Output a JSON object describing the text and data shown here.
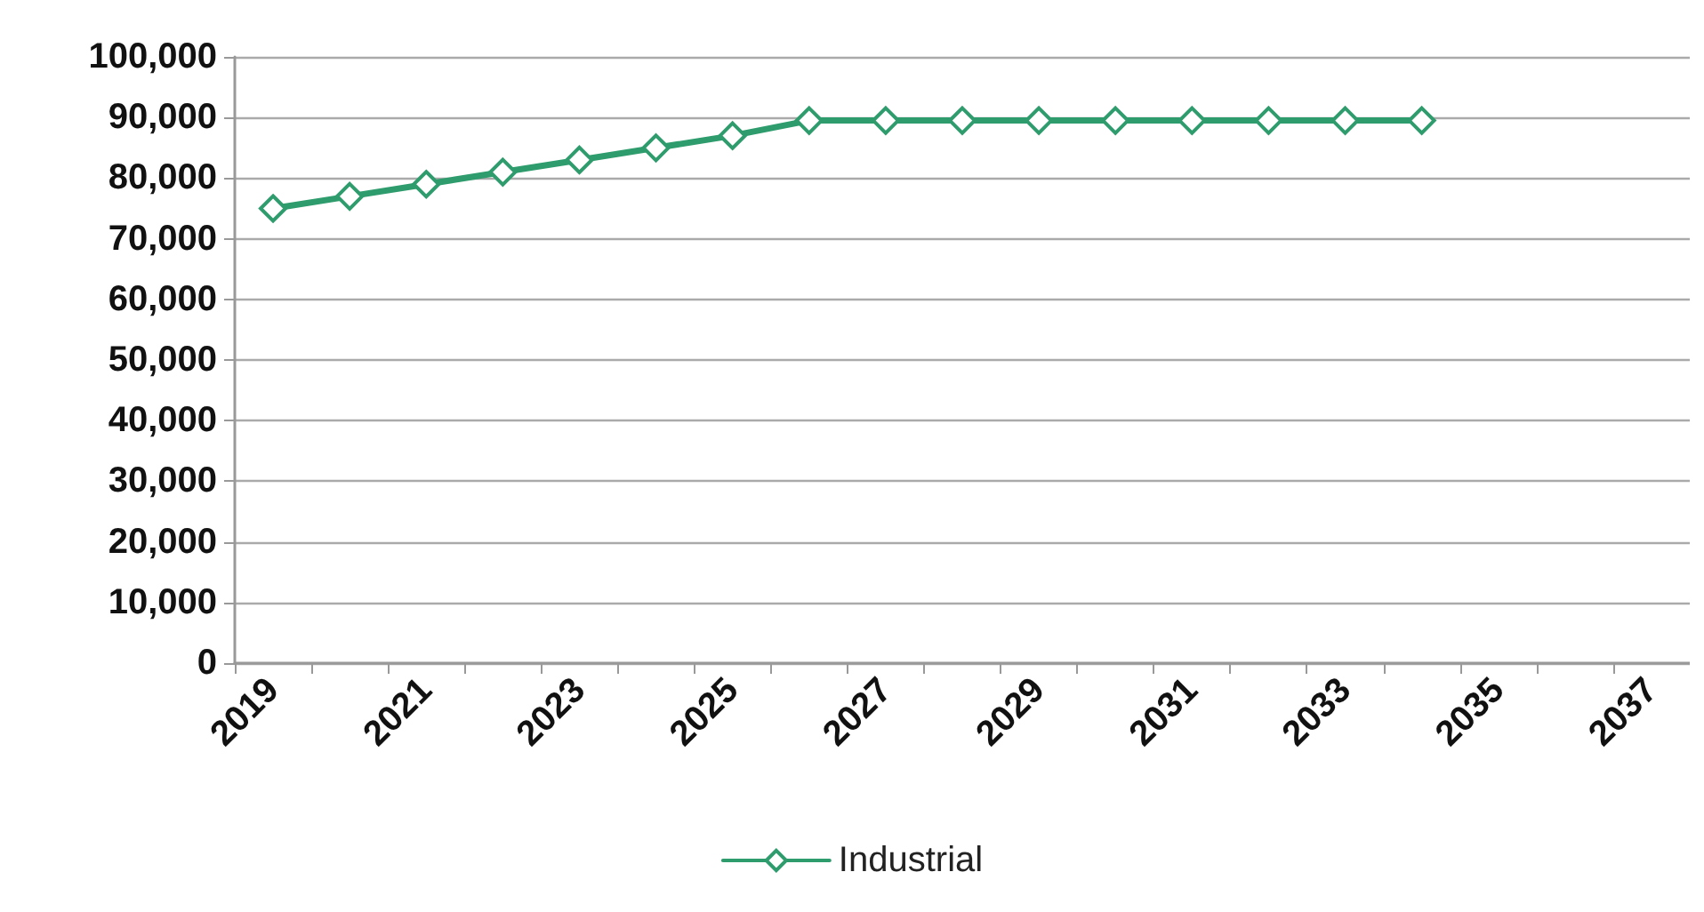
{
  "chart_data": {
    "type": "line",
    "categories": [
      "2019",
      null,
      "2021",
      null,
      "2023",
      null,
      "2025",
      null,
      "2027",
      null,
      "2029",
      null,
      "2031",
      null,
      "2033",
      null,
      "2035",
      null,
      "2037"
    ],
    "series": [
      {
        "name": "Industrial",
        "color": "#2e9c6c",
        "values": [
          75000,
          77000,
          79000,
          81000,
          83000,
          85000,
          87000,
          89500,
          89500,
          89500,
          89500,
          89500,
          89500,
          89500,
          89500,
          89500,
          null,
          null,
          null
        ]
      }
    ],
    "ylim": [
      0,
      100000
    ],
    "yticks": [
      0,
      {
        "value": 10000,
        "label": "10,000"
      },
      {
        "value": 20000,
        "label": "20,000"
      },
      {
        "value": 30000,
        "label": "30,000"
      },
      {
        "value": 40000,
        "label": "40,000"
      },
      {
        "value": 50000,
        "label": "50,000"
      },
      {
        "value": 60000,
        "label": "60,000"
      },
      {
        "value": 70000,
        "label": "70,000"
      },
      {
        "value": 80000,
        "label": "80,000"
      },
      {
        "value": 90000,
        "label": "90,000"
      },
      {
        "value": 100000,
        "label": "100,000"
      }
    ],
    "grid": "y",
    "legend": "bottom",
    "marker": "diamond",
    "line_style": "solid"
  }
}
